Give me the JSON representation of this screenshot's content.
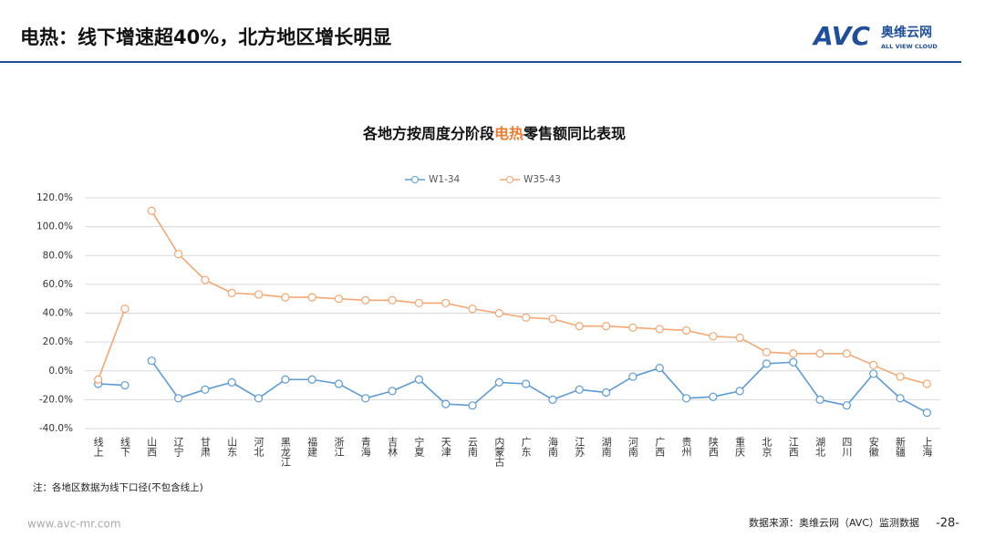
{
  "header": {
    "title": "电热：线下增速超40%，北方地区增长明显",
    "logo": "AVC",
    "brand": "奥维云网",
    "brand_en": "ALL VIEW CLOUD"
  },
  "chart_data": {
    "type": "line",
    "title_parts": [
      "各地方按周度分阶段",
      "电热",
      "零售额同比表现"
    ],
    "title_highlight_color": "#ed7d31",
    "categories": [
      "线上",
      "线下",
      "山西",
      "辽宁",
      "甘肃",
      "山东",
      "河北",
      "黑龙江",
      "福建",
      "浙江",
      "青海",
      "吉林",
      "宁夏",
      "天津",
      "云南",
      "内蒙古",
      "广东",
      "海南",
      "江苏",
      "湖南",
      "河南",
      "广西",
      "贵州",
      "陕西",
      "重庆",
      "北京",
      "江西",
      "湖北",
      "四川",
      "安徽",
      "新疆",
      "上海"
    ],
    "series": [
      {
        "name": "W1-34",
        "color": "#5b9bd5",
        "values": [
          -9,
          -10,
          7,
          -19,
          -13,
          -8,
          -19,
          -6,
          -6,
          -9,
          -19,
          -14,
          -6,
          -23,
          -24,
          -8,
          -9,
          -20,
          -13,
          -15,
          -4,
          2,
          -19,
          -18,
          -14,
          5,
          6,
          -20,
          -24,
          -2,
          -19,
          -29
        ]
      },
      {
        "name": "W35-43",
        "color": "#f4a772",
        "values": [
          -6,
          43,
          111,
          81,
          63,
          54,
          53,
          51,
          51,
          50,
          49,
          49,
          47,
          47,
          43,
          40,
          37,
          36,
          31,
          31,
          30,
          29,
          28,
          24,
          23,
          13,
          12,
          12,
          12,
          4,
          -4,
          -9
        ]
      }
    ],
    "breaks": [
      2
    ],
    "ylim": [
      -40,
      120
    ],
    "yticks": [
      {
        "value": -40,
        "label": "-40.0%"
      },
      {
        "value": -20,
        "label": "-20.0%"
      },
      {
        "value": 0,
        "label": "0.0%"
      },
      {
        "value": 20,
        "label": "20.0%"
      },
      {
        "value": 40,
        "label": "40.0%"
      },
      {
        "value": 60,
        "label": "60.0%"
      },
      {
        "value": 80,
        "label": "80.0%"
      },
      {
        "value": 100,
        "label": "100.0%"
      },
      {
        "value": 120,
        "label": "120.0%"
      }
    ],
    "grid": true,
    "legend": "top"
  },
  "footer": {
    "note": "注：各地区数据为线下口径(不包含线上)",
    "website": "www.avc-mr.com",
    "source": "数据来源：奥维云网（AVC）监测数据",
    "page": "-28-"
  }
}
